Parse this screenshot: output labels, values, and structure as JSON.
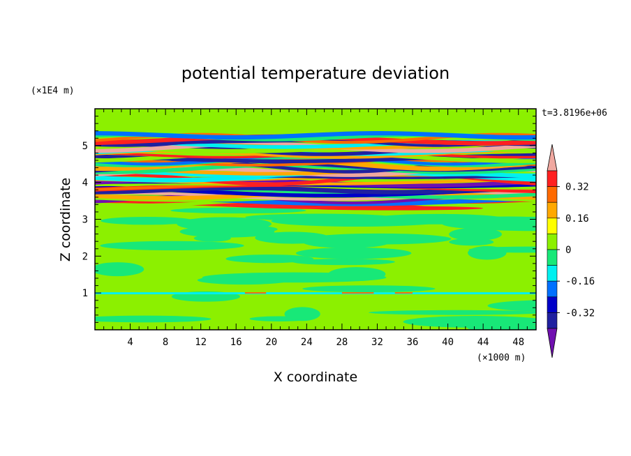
{
  "chart_data": {
    "type": "heatmap",
    "title": "potential temperature deviation",
    "xlabel": "X coordinate",
    "ylabel": "Z coordinate",
    "x_unit": "(×1000 m)",
    "y_unit": "(×1E4 m)",
    "time_label": "t=3.8196e+06",
    "xlim": [
      0,
      50
    ],
    "ylim": [
      0,
      6
    ],
    "x_ticks": [
      4,
      8,
      12,
      16,
      20,
      24,
      28,
      32,
      36,
      40,
      44,
      48
    ],
    "y_ticks": [
      1,
      2,
      3,
      4,
      5
    ],
    "colorbar": {
      "ticks": [
        0.32,
        0.16,
        0,
        -0.16,
        -0.32
      ],
      "tick_labels": [
        "0.32",
        "0.16",
        "0",
        "-0.16",
        "-0.32"
      ],
      "levels": [
        {
          "label": ">0.40",
          "color": "#f0a8a0"
        },
        {
          "label": "0.32–0.40",
          "color": "#ff2020"
        },
        {
          "label": "0.24–0.32",
          "color": "#ff6a00"
        },
        {
          "label": "0.16–0.24",
          "color": "#ffa800"
        },
        {
          "label": "0.08–0.16",
          "color": "#ffff00"
        },
        {
          "label": "0–0.08",
          "color": "#8cf000"
        },
        {
          "label": "-0.08–0",
          "color": "#18e878"
        },
        {
          "label": "-0.16–-0.08",
          "color": "#00f0f0"
        },
        {
          "label": "-0.24–-0.16",
          "color": "#0070ff"
        },
        {
          "label": "-0.32–-0.24",
          "color": "#0000c8"
        },
        {
          "label": "-0.40–-0.32",
          "color": "#2020a0"
        },
        {
          "label": "<-0.40",
          "color": "#7010b0"
        }
      ]
    },
    "field_summary": {
      "background_level": "0–0.08",
      "secondary_level": "-0.08–0",
      "turbulent_band_z": [
        3.4,
        5.3
      ]
    }
  }
}
